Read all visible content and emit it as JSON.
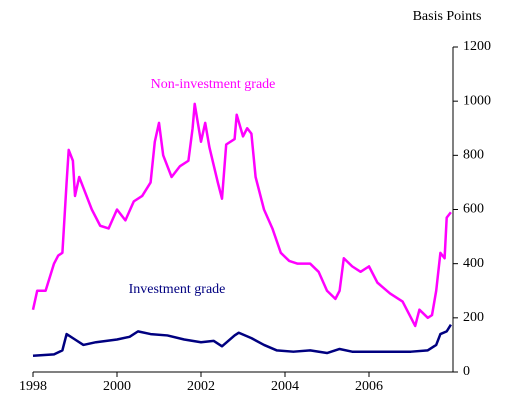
{
  "chart_data": {
    "type": "line",
    "axis_label": "Basis Points",
    "annotations": [
      "Non-investment grade",
      "Investment grade"
    ],
    "xlim": [
      1998,
      2008
    ],
    "xticks": [
      1998,
      2000,
      2002,
      2004,
      2006
    ],
    "ylim": [
      0,
      1200
    ],
    "yticks": [
      0,
      200,
      400,
      600,
      800,
      1000,
      1200
    ],
    "y_axis_side": "right",
    "series": [
      {
        "name": "Non-investment grade",
        "color": "#ff00ff",
        "x": [
          1998.0,
          1998.1,
          1998.3,
          1998.5,
          1998.6,
          1998.7,
          1998.8,
          1998.85,
          1998.95,
          1999.0,
          1999.1,
          1999.2,
          1999.4,
          1999.6,
          1999.8,
          2000.0,
          2000.2,
          2000.4,
          2000.6,
          2000.8,
          2000.9,
          2001.0,
          2001.1,
          2001.3,
          2001.5,
          2001.7,
          2001.8,
          2001.85,
          2002.0,
          2002.1,
          2002.2,
          2002.4,
          2002.5,
          2002.6,
          2002.8,
          2002.85,
          2003.0,
          2003.1,
          2003.2,
          2003.3,
          2003.5,
          2003.7,
          2003.9,
          2004.1,
          2004.3,
          2004.6,
          2004.8,
          2005.0,
          2005.2,
          2005.3,
          2005.4,
          2005.6,
          2005.8,
          2006.0,
          2006.2,
          2006.5,
          2006.8,
          2007.0,
          2007.1,
          2007.2,
          2007.4,
          2007.5,
          2007.6,
          2007.7,
          2007.8,
          2007.85,
          2007.95
        ],
        "values": [
          230,
          300,
          300,
          400,
          430,
          440,
          700,
          820,
          780,
          650,
          720,
          680,
          600,
          540,
          530,
          600,
          560,
          630,
          650,
          700,
          850,
          920,
          800,
          720,
          760,
          780,
          900,
          990,
          850,
          920,
          830,
          700,
          640,
          840,
          860,
          950,
          870,
          900,
          880,
          720,
          600,
          530,
          440,
          410,
          400,
          400,
          370,
          300,
          270,
          300,
          420,
          390,
          370,
          390,
          330,
          290,
          260,
          200,
          170,
          230,
          200,
          210,
          300,
          440,
          420,
          570,
          590
        ]
      },
      {
        "name": "Investment grade",
        "color": "#000080",
        "x": [
          1998.0,
          1998.5,
          1998.7,
          1998.8,
          1999.0,
          1999.2,
          1999.5,
          2000.0,
          2000.3,
          2000.5,
          2000.8,
          2001.2,
          2001.6,
          2002.0,
          2002.3,
          2002.5,
          2002.8,
          2002.9,
          2003.2,
          2003.5,
          2003.8,
          2004.2,
          2004.6,
          2005.0,
          2005.3,
          2005.6,
          2006.0,
          2006.5,
          2007.0,
          2007.4,
          2007.6,
          2007.7,
          2007.85,
          2007.95
        ],
        "values": [
          60,
          65,
          80,
          140,
          120,
          100,
          110,
          120,
          130,
          150,
          140,
          135,
          120,
          110,
          115,
          95,
          135,
          145,
          125,
          100,
          80,
          75,
          80,
          70,
          85,
          75,
          75,
          75,
          75,
          80,
          100,
          140,
          150,
          175
        ]
      }
    ]
  }
}
